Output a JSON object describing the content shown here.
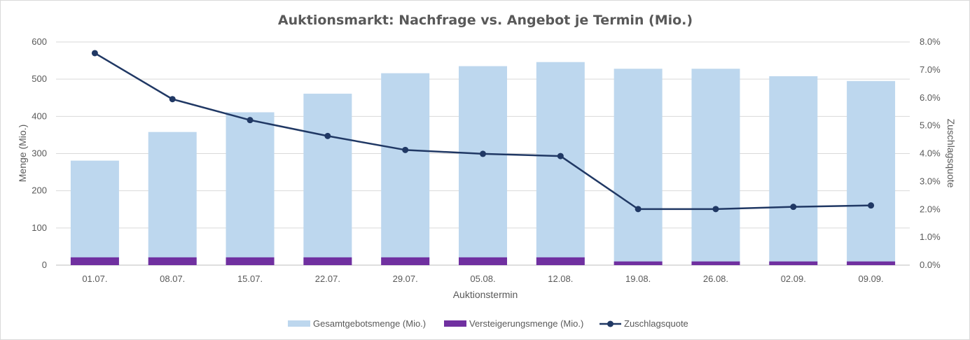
{
  "chart_data": {
    "type": "bar",
    "title": "Auktionsmarkt: Nachfrage vs. Angebot je Termin (Mio.)",
    "xlabel": "Auktionstermin",
    "ylabel": "Menge (Mio.)",
    "y2label": "Zuschlagsquote",
    "categories": [
      "01.07.",
      "08.07.",
      "15.07.",
      "22.07.",
      "29.07.",
      "05.08.",
      "12.08.",
      "19.08.",
      "26.08.",
      "02.09.",
      "09.09."
    ],
    "ylim": [
      0,
      600
    ],
    "yticks": [
      "0",
      "100",
      "200",
      "300",
      "400",
      "500",
      "600"
    ],
    "y2lim": [
      0,
      0.08
    ],
    "y2ticks": [
      "0.0%",
      "1.0%",
      "2.0%",
      "3.0%",
      "4.0%",
      "5.0%",
      "6.0%",
      "7.0%",
      "8.0%"
    ],
    "grid": true,
    "legend_position": "bottom",
    "series": [
      {
        "name": "Gesamtgebotsmenge (Mio.)",
        "type": "bar",
        "color": "#bdd7ee",
        "values": [
          281,
          358,
          411,
          461,
          516,
          535,
          546,
          528,
          528,
          508,
          495
        ]
      },
      {
        "name": "Versteigerungsmenge (Mio.)",
        "type": "bar",
        "color": "#7030a0",
        "values": [
          21,
          21,
          21,
          21,
          21,
          21,
          21,
          10,
          10,
          10,
          10
        ]
      },
      {
        "name": "Zuschlagsquote",
        "type": "line",
        "axis": "secondary",
        "color": "#203864",
        "values": [
          0.076,
          0.0595,
          0.052,
          0.0463,
          0.0413,
          0.0399,
          0.0391,
          0.0201,
          0.0201,
          0.0209,
          0.0214
        ]
      }
    ]
  }
}
